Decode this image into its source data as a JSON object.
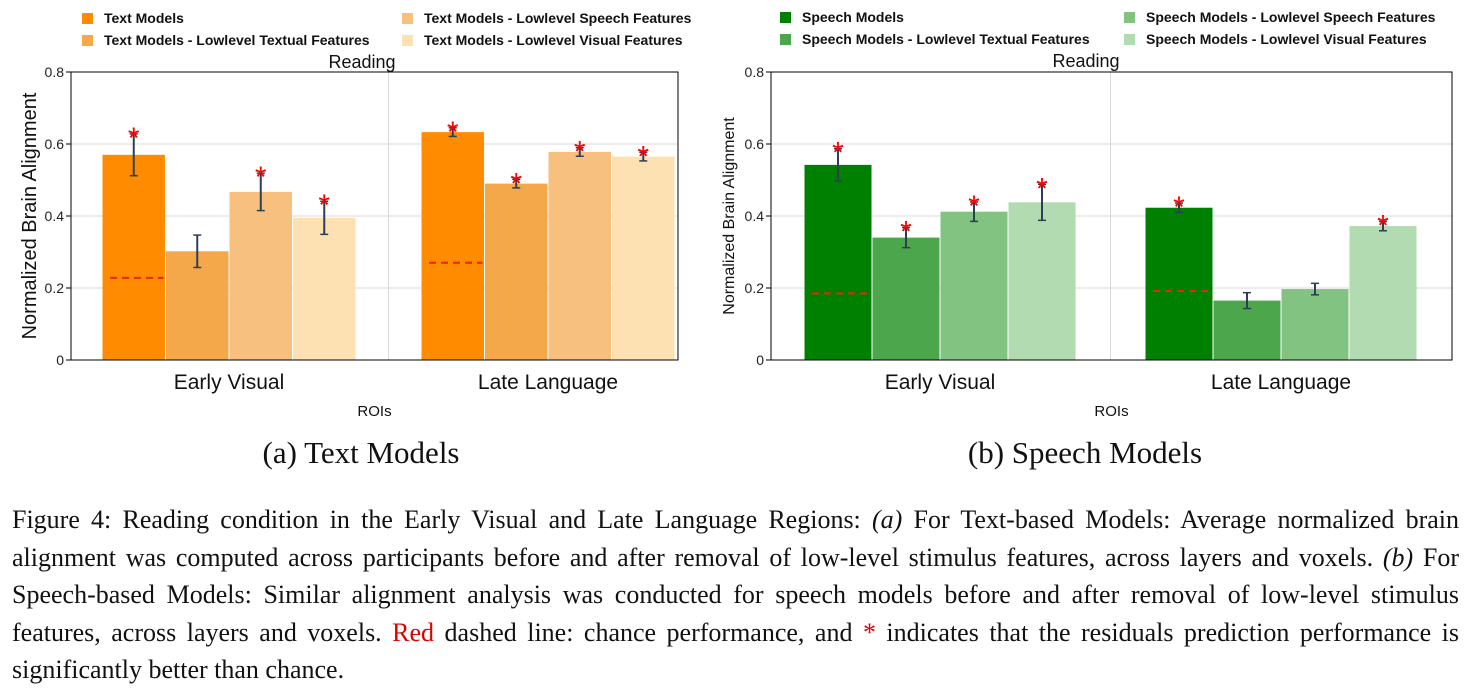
{
  "figure": {
    "caption": {
      "label": "Figure 4:",
      "intro": "Reading condition in the Early Visual and Late Language Regions:",
      "part_a_label": "(a)",
      "part_a_text": "For Text-based Models: Average normalized brain alignment was computed across participants before and after removal of low-level stimulus features, across layers and voxels.",
      "part_b_label": "(b)",
      "part_b_text": "For Speech-based Models: Similar alignment analysis was conducted for speech models before and after removal of low-level stimulus features, across layers and voxels.",
      "red_word": "Red",
      "chance_text": "dashed line: chance performance, and",
      "star_symbol": "*",
      "significance_text": "indicates that the residuals prediction performance is significantly better than chance."
    }
  },
  "colors": {
    "chance_line": "#e8231e",
    "significance_star": "#ff0000",
    "error_bar": "#2d3f55",
    "grid": "#d9d9d9"
  },
  "chart_data": [
    {
      "type": "bar",
      "subcaption": "(a) Text Models",
      "title": "Reading",
      "xlabel": "ROIs",
      "ylabel": "Normalized Brain Alignment",
      "ylim": [
        0,
        0.8
      ],
      "yticks": [
        "0",
        "0.2",
        "0.4",
        "0.6",
        "0.8"
      ],
      "grid": true,
      "legend_position": "top",
      "categories": [
        "Early Visual",
        "Late Language"
      ],
      "series": [
        {
          "name": "Text Models",
          "color": "#ff8c00",
          "values": [
            0.57,
            0.633
          ],
          "errors": [
            0.058,
            0.012
          ],
          "significant": [
            true,
            true
          ]
        },
        {
          "name": "Text Models - Lowlevel Textual Features",
          "color": "#f5a84a",
          "values": [
            0.302,
            0.49
          ],
          "errors": [
            0.045,
            0.012
          ],
          "significant": [
            false,
            true
          ]
        },
        {
          "name": "Text Models - Lowlevel Speech Features",
          "color": "#f8c07e",
          "values": [
            0.467,
            0.578
          ],
          "errors": [
            0.052,
            0.012
          ],
          "significant": [
            true,
            true
          ]
        },
        {
          "name": "Text Models - Lowlevel Visual Features",
          "color": "#fde1b2",
          "values": [
            0.395,
            0.565
          ],
          "errors": [
            0.046,
            0.012
          ],
          "significant": [
            true,
            true
          ]
        }
      ],
      "chance": [
        0.228,
        0.27
      ]
    },
    {
      "type": "bar",
      "subcaption": "(b) Speech Models",
      "title": "Reading",
      "xlabel": "ROIs",
      "ylabel": "Normalized Brain Alignment",
      "ylim": [
        0,
        0.8
      ],
      "yticks": [
        "0",
        "0.2",
        "0.4",
        "0.6",
        "0.8"
      ],
      "grid": true,
      "legend_position": "top",
      "categories": [
        "Early Visual",
        "Late Language"
      ],
      "series": [
        {
          "name": "Speech Models",
          "color": "#008000",
          "values": [
            0.542,
            0.423
          ],
          "errors": [
            0.045,
            0.013
          ],
          "significant": [
            true,
            true
          ]
        },
        {
          "name": "Speech Models - Lowlevel Textual Features",
          "color": "#4ca64c",
          "values": [
            0.34,
            0.165
          ],
          "errors": [
            0.028,
            0.022
          ],
          "significant": [
            true,
            false
          ]
        },
        {
          "name": "Speech Models - Lowlevel Speech Features",
          "color": "#82c382",
          "values": [
            0.412,
            0.197
          ],
          "errors": [
            0.027,
            0.016
          ],
          "significant": [
            true,
            false
          ]
        },
        {
          "name": "Speech Models - Lowlevel Visual Features",
          "color": "#b2dbb2",
          "values": [
            0.438,
            0.372
          ],
          "errors": [
            0.05,
            0.013
          ],
          "significant": [
            true,
            true
          ]
        }
      ],
      "chance": [
        0.185,
        0.192
      ]
    }
  ]
}
